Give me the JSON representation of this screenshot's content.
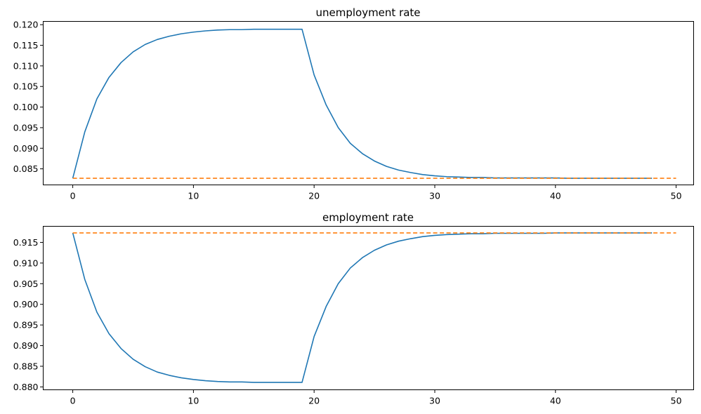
{
  "chart_data": [
    {
      "type": "line",
      "title": "unemployment rate",
      "xlabel": "",
      "ylabel": "",
      "xlim": [
        -2.45,
        51.45
      ],
      "ylim": [
        0.0811,
        0.1208
      ],
      "xticks": [
        0,
        10,
        20,
        30,
        40,
        50
      ],
      "yticks": [
        0.085,
        0.09,
        0.095,
        0.1,
        0.105,
        0.11,
        0.115,
        0.12
      ],
      "ytick_labels": [
        "0.085",
        "0.090",
        "0.095",
        "0.100",
        "0.105",
        "0.110",
        "0.115",
        "0.120"
      ],
      "grid": false,
      "series": [
        {
          "style": "solid",
          "color": "#1f77b4",
          "x": [
            0,
            1,
            2,
            3,
            4,
            5,
            6,
            7,
            8,
            9,
            10,
            11,
            12,
            13,
            14,
            15,
            16,
            17,
            18,
            19,
            20,
            21,
            22,
            23,
            24,
            25,
            26,
            27,
            28,
            29,
            30,
            31,
            32,
            33,
            34,
            35,
            36,
            37,
            38,
            39,
            40,
            41,
            42,
            43,
            44,
            45,
            46,
            47,
            48
          ],
          "values": [
            0.0827,
            0.094,
            0.102,
            0.1072,
            0.1108,
            0.1134,
            0.1152,
            0.1164,
            0.1172,
            0.1178,
            0.1182,
            0.1185,
            0.1187,
            0.1188,
            0.1188,
            0.1189,
            0.1189,
            0.1189,
            0.1189,
            0.1189,
            0.1078,
            0.1005,
            0.095,
            0.0912,
            0.0887,
            0.0869,
            0.0856,
            0.0847,
            0.0841,
            0.0836,
            0.0833,
            0.0831,
            0.083,
            0.0829,
            0.0829,
            0.0828,
            0.0828,
            0.0828,
            0.0828,
            0.0828,
            0.0828,
            0.0827,
            0.0827,
            0.0827,
            0.0827,
            0.0827,
            0.0827,
            0.0827,
            0.0827
          ]
        },
        {
          "style": "dashed",
          "color": "#ff7f0e",
          "x": [
            0,
            50
          ],
          "values": [
            0.0827,
            0.0827
          ]
        }
      ]
    },
    {
      "type": "line",
      "title": "employment rate",
      "xlabel": "",
      "ylabel": "",
      "xlim": [
        -2.45,
        51.45
      ],
      "ylim": [
        0.8793,
        0.9189
      ],
      "xticks": [
        0,
        10,
        20,
        30,
        40,
        50
      ],
      "yticks": [
        0.88,
        0.885,
        0.89,
        0.895,
        0.9,
        0.905,
        0.91,
        0.915
      ],
      "ytick_labels": [
        "0.880",
        "0.885",
        "0.890",
        "0.895",
        "0.900",
        "0.905",
        "0.910",
        "0.915"
      ],
      "grid": false,
      "series": [
        {
          "style": "solid",
          "color": "#1f77b4",
          "x": [
            0,
            1,
            2,
            3,
            4,
            5,
            6,
            7,
            8,
            9,
            10,
            11,
            12,
            13,
            14,
            15,
            16,
            17,
            18,
            19,
            20,
            21,
            22,
            23,
            24,
            25,
            26,
            27,
            28,
            29,
            30,
            31,
            32,
            33,
            34,
            35,
            36,
            37,
            38,
            39,
            40,
            41,
            42,
            43,
            44,
            45,
            46,
            47,
            48
          ],
          "values": [
            0.9173,
            0.906,
            0.8981,
            0.8929,
            0.8893,
            0.8867,
            0.8849,
            0.8836,
            0.8828,
            0.8822,
            0.8818,
            0.8815,
            0.8813,
            0.8812,
            0.8812,
            0.8811,
            0.8811,
            0.8811,
            0.8811,
            0.8811,
            0.8922,
            0.8995,
            0.905,
            0.9088,
            0.9113,
            0.9131,
            0.9144,
            0.9153,
            0.9159,
            0.9164,
            0.9167,
            0.9169,
            0.917,
            0.9171,
            0.9171,
            0.9172,
            0.9172,
            0.9172,
            0.9172,
            0.9172,
            0.9173,
            0.9173,
            0.9173,
            0.9173,
            0.9173,
            0.9173,
            0.9173,
            0.9173,
            0.9173
          ]
        },
        {
          "style": "dashed",
          "color": "#ff7f0e",
          "x": [
            0,
            50
          ],
          "values": [
            0.9173,
            0.9173
          ]
        }
      ]
    }
  ]
}
